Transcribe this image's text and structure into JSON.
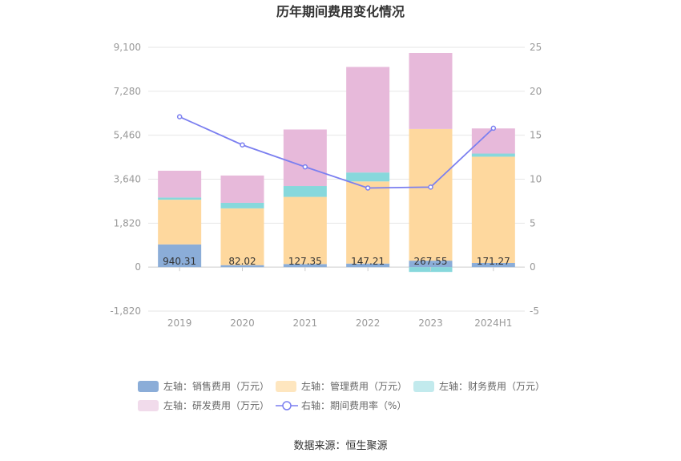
{
  "title": "历年期间费用变化情况",
  "source": "数据来源：恒生聚源",
  "chart_data": {
    "type": "bar",
    "stacked": true,
    "categories": [
      "2019",
      "2020",
      "2021",
      "2022",
      "2023",
      "2024H1"
    ],
    "left_axis": {
      "ticks": [
        "9,100",
        "7,280",
        "5,460",
        "3,640",
        "1,820",
        "0",
        "-1,820"
      ],
      "ylim": [
        -1820,
        9100
      ]
    },
    "right_axis": {
      "ticks": [
        "25",
        "20",
        "15",
        "10",
        "5",
        "0",
        "-5"
      ],
      "ylim": [
        -5,
        25
      ]
    },
    "series": [
      {
        "name": "左轴：销售费用（万元）",
        "color": "#8badd8",
        "axis": "left",
        "values": [
          940.31,
          82.02,
          127.35,
          147.21,
          267.55,
          171.27
        ],
        "labels": [
          "940.31",
          "82.02",
          "127.35",
          "147.21",
          "267.55",
          "171.27"
        ]
      },
      {
        "name": "左轴：管理费用（万元）",
        "color": "#fed89e",
        "axis": "left",
        "values": [
          1850,
          2350,
          2780,
          3400,
          5450,
          4400
        ]
      },
      {
        "name": "左轴：财务费用（万元）",
        "color": "#87d8dc",
        "axis": "left",
        "values": [
          90,
          230,
          450,
          370,
          -200,
          130
        ]
      },
      {
        "name": "左轴：研发费用（万元）",
        "color": "#e7b9da",
        "axis": "left",
        "values": [
          1110,
          1130,
          2340,
          4370,
          3150,
          1040
        ]
      },
      {
        "name": "右轴：期间费用率（%）",
        "color": "#7b7ff0",
        "axis": "right",
        "type": "line",
        "values": [
          17.1,
          13.9,
          11.4,
          9.0,
          9.1,
          15.8
        ]
      }
    ],
    "legend_position": "bottom",
    "grid": true
  }
}
